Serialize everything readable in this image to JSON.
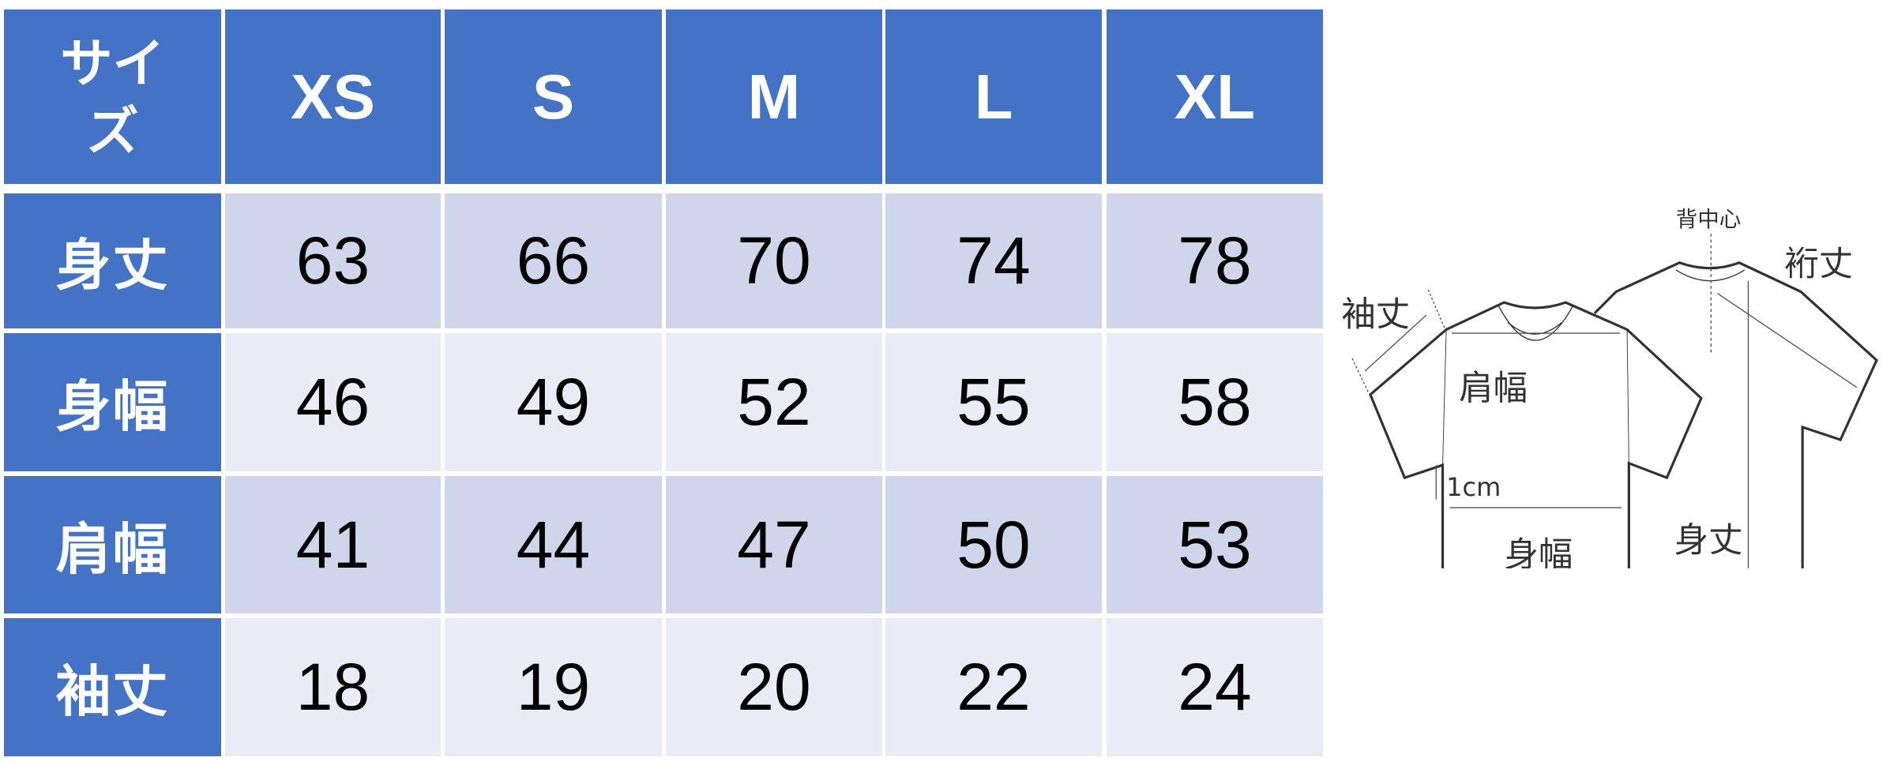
{
  "table": {
    "corner_label": "サイズ",
    "sizes": [
      "XS",
      "S",
      "M",
      "L",
      "XL"
    ],
    "rows": [
      {
        "label": "身丈",
        "values": [
          "63",
          "66",
          "70",
          "74",
          "78"
        ]
      },
      {
        "label": "身幅",
        "values": [
          "46",
          "49",
          "52",
          "55",
          "58"
        ]
      },
      {
        "label": "肩幅",
        "values": [
          "41",
          "44",
          "47",
          "50",
          "53"
        ]
      },
      {
        "label": "袖丈",
        "values": [
          "18",
          "19",
          "20",
          "22",
          "24"
        ]
      }
    ]
  },
  "colors": {
    "header": "#4472C4",
    "row_dark": "#CFD5EA",
    "row_light": "#E9EBF5"
  },
  "diagram": {
    "back_center": "背中心",
    "yuki": "裄丈",
    "sleeve_length": "袖丈",
    "shoulder_width": "肩幅",
    "offset": "1cm",
    "body_width": "身幅",
    "body_length": "身丈"
  }
}
